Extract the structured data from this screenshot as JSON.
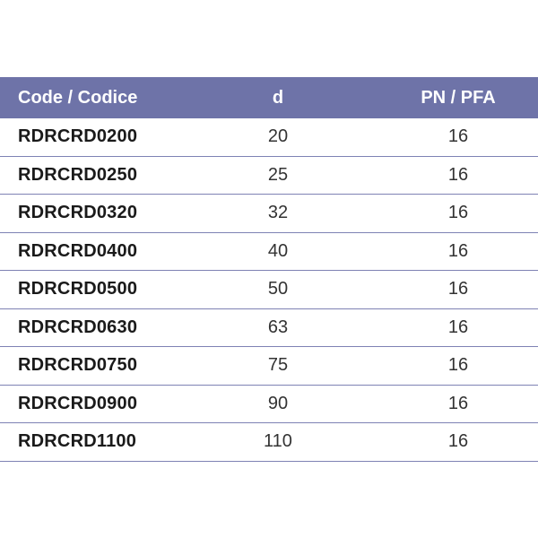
{
  "table": {
    "headers": {
      "code": "Code / Codice",
      "d": "d",
      "pn": "PN / PFA"
    },
    "rows": [
      {
        "code": "RDRCRD0200",
        "d": "20",
        "pn": "16"
      },
      {
        "code": "RDRCRD0250",
        "d": "25",
        "pn": "16"
      },
      {
        "code": "RDRCRD0320",
        "d": "32",
        "pn": "16"
      },
      {
        "code": "RDRCRD0400",
        "d": "40",
        "pn": "16"
      },
      {
        "code": "RDRCRD0500",
        "d": "50",
        "pn": "16"
      },
      {
        "code": "RDRCRD0630",
        "d": "63",
        "pn": "16"
      },
      {
        "code": "RDRCRD0750",
        "d": "75",
        "pn": "16"
      },
      {
        "code": "RDRCRD0900",
        "d": "90",
        "pn": "16"
      },
      {
        "code": "RDRCRD1100",
        "d": "110",
        "pn": "16"
      }
    ]
  },
  "colors": {
    "header_bg": "#6e73a8",
    "header_text": "#ffffff",
    "row_divider": "#7e82b4"
  }
}
